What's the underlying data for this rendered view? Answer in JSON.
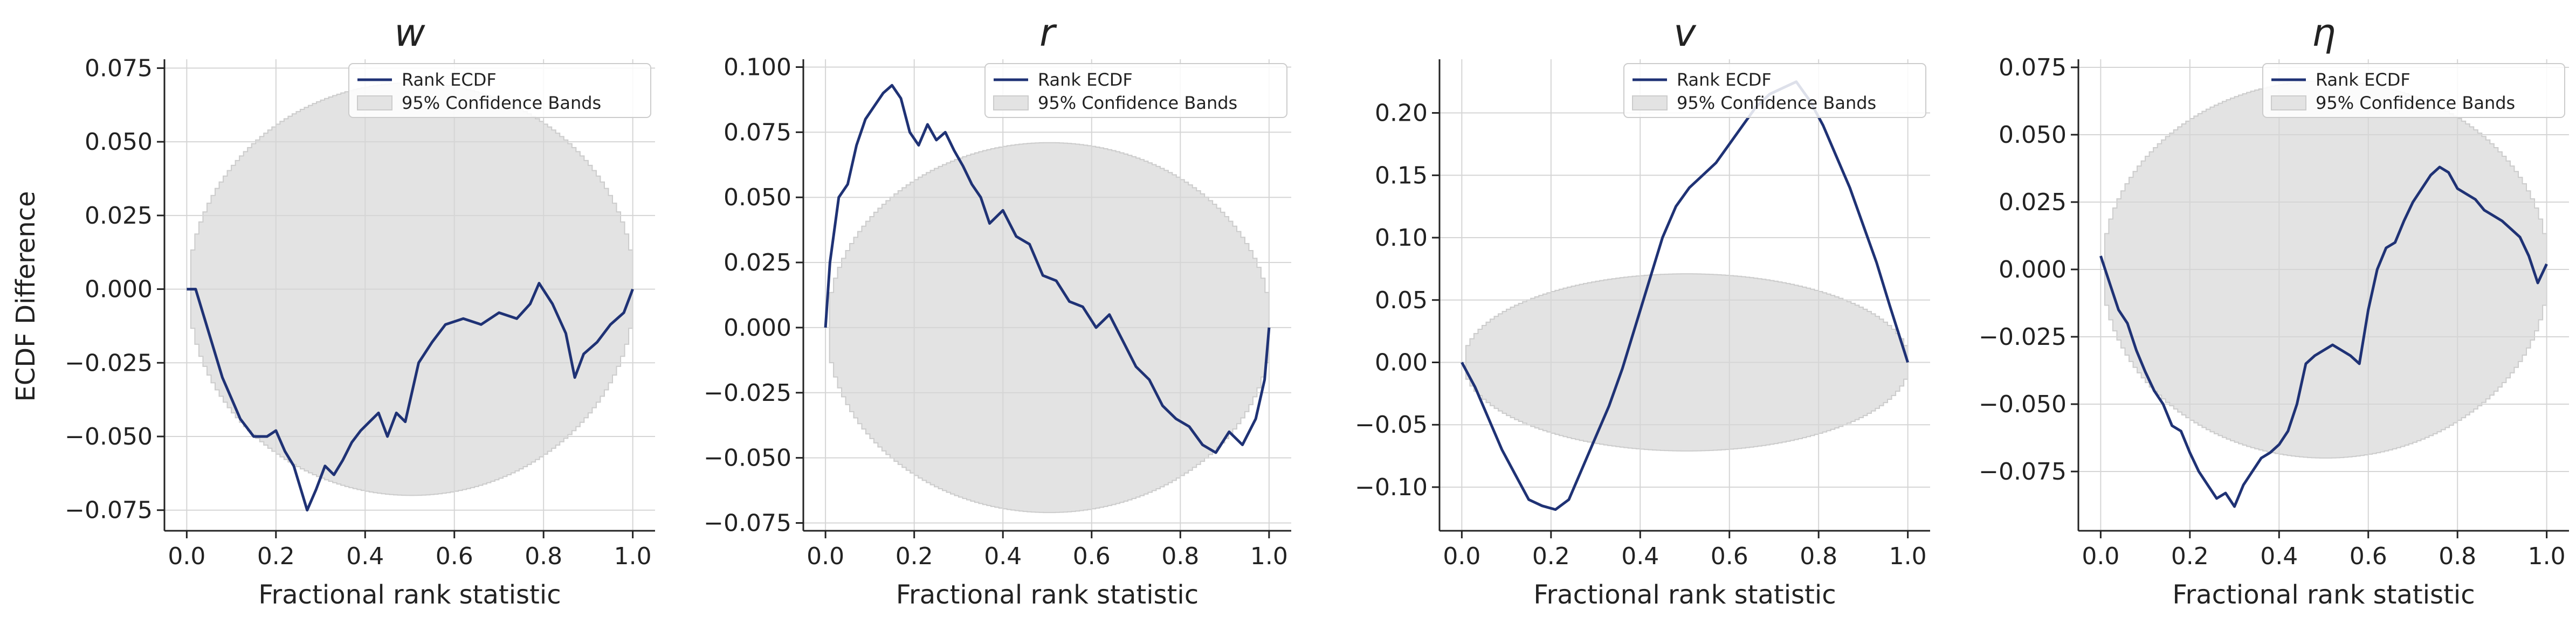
{
  "figure": {
    "ylabel": "ECDF Difference",
    "legend": {
      "line_label": "Rank ECDF",
      "band_label": "95% Confidence Bands",
      "placement": "top-right"
    }
  },
  "colors": {
    "line": "#1f3275",
    "band_fill": "#e3e3e3",
    "band_edge": "#cccccc",
    "grid": "#d5d5d5",
    "axis": "#222222"
  },
  "chart_data": [
    {
      "type": "line",
      "title": "w",
      "xlabel": "Fractional rank statistic",
      "xlim": [
        -0.05,
        1.05
      ],
      "ylim": [
        -0.082,
        0.078
      ],
      "xticks": [
        "0.0",
        "0.2",
        "0.4",
        "0.6",
        "0.8",
        "1.0"
      ],
      "yticks": [
        "−0.075",
        "−0.050",
        "−0.025",
        "0.000",
        "0.025",
        "0.050",
        "0.075"
      ],
      "ytick_values": [
        -0.075,
        -0.05,
        -0.025,
        0,
        0.025,
        0.05,
        0.075
      ],
      "band_halfwidth_max": 0.07,
      "series": [
        {
          "name": "Rank ECDF",
          "x": [
            0,
            0.02,
            0.05,
            0.08,
            0.1,
            0.12,
            0.15,
            0.18,
            0.2,
            0.22,
            0.24,
            0.26,
            0.27,
            0.29,
            0.31,
            0.33,
            0.35,
            0.37,
            0.39,
            0.41,
            0.43,
            0.45,
            0.47,
            0.49,
            0.52,
            0.55,
            0.58,
            0.62,
            0.66,
            0.7,
            0.74,
            0.77,
            0.79,
            0.82,
            0.85,
            0.87,
            0.89,
            0.92,
            0.95,
            0.98,
            1.0
          ],
          "y": [
            0,
            0.0,
            -0.015,
            -0.03,
            -0.037,
            -0.044,
            -0.05,
            -0.05,
            -0.048,
            -0.055,
            -0.06,
            -0.07,
            -0.075,
            -0.068,
            -0.06,
            -0.063,
            -0.058,
            -0.052,
            -0.048,
            -0.045,
            -0.042,
            -0.05,
            -0.042,
            -0.045,
            -0.025,
            -0.018,
            -0.012,
            -0.01,
            -0.012,
            -0.008,
            -0.01,
            -0.005,
            0.002,
            -0.005,
            -0.015,
            -0.03,
            -0.022,
            -0.018,
            -0.012,
            -0.008,
            0
          ]
        }
      ]
    },
    {
      "type": "line",
      "title": "r",
      "xlabel": "Fractional rank statistic",
      "xlim": [
        -0.05,
        1.05
      ],
      "ylim": [
        -0.078,
        0.103
      ],
      "xticks": [
        "0.0",
        "0.2",
        "0.4",
        "0.6",
        "0.8",
        "1.0"
      ],
      "yticks": [
        "−0.075",
        "−0.050",
        "−0.025",
        "0.000",
        "0.025",
        "0.050",
        "0.075",
        "0.100"
      ],
      "ytick_values": [
        -0.075,
        -0.05,
        -0.025,
        0,
        0.025,
        0.05,
        0.075,
        0.1
      ],
      "band_halfwidth_max": 0.071,
      "series": [
        {
          "name": "Rank ECDF",
          "x": [
            0,
            0.01,
            0.03,
            0.05,
            0.07,
            0.09,
            0.11,
            0.13,
            0.15,
            0.17,
            0.19,
            0.21,
            0.23,
            0.25,
            0.27,
            0.29,
            0.31,
            0.33,
            0.35,
            0.37,
            0.4,
            0.43,
            0.46,
            0.49,
            0.52,
            0.55,
            0.58,
            0.61,
            0.64,
            0.67,
            0.7,
            0.73,
            0.76,
            0.79,
            0.82,
            0.85,
            0.88,
            0.91,
            0.94,
            0.97,
            0.99,
            1.0
          ],
          "y": [
            0,
            0.025,
            0.05,
            0.055,
            0.07,
            0.08,
            0.085,
            0.09,
            0.093,
            0.088,
            0.075,
            0.07,
            0.078,
            0.072,
            0.075,
            0.068,
            0.062,
            0.055,
            0.05,
            0.04,
            0.045,
            0.035,
            0.032,
            0.02,
            0.018,
            0.01,
            0.008,
            0.0,
            0.005,
            -0.005,
            -0.015,
            -0.02,
            -0.03,
            -0.035,
            -0.038,
            -0.045,
            -0.048,
            -0.04,
            -0.045,
            -0.035,
            -0.02,
            0
          ]
        }
      ]
    },
    {
      "type": "line",
      "title": "v",
      "xlabel": "Fractional rank statistic",
      "xlim": [
        -0.05,
        1.05
      ],
      "ylim": [
        -0.135,
        0.243
      ],
      "xticks": [
        "0.0",
        "0.2",
        "0.4",
        "0.6",
        "0.8",
        "1.0"
      ],
      "yticks": [
        "−0.10",
        "−0.05",
        "0.00",
        "0.05",
        "0.10",
        "0.15",
        "0.20"
      ],
      "ytick_values": [
        -0.1,
        -0.05,
        0,
        0.05,
        0.1,
        0.15,
        0.2
      ],
      "band_halfwidth_max": 0.071,
      "series": [
        {
          "name": "Rank ECDF",
          "x": [
            0,
            0.03,
            0.06,
            0.09,
            0.12,
            0.15,
            0.18,
            0.21,
            0.24,
            0.27,
            0.3,
            0.33,
            0.36,
            0.39,
            0.42,
            0.45,
            0.48,
            0.51,
            0.54,
            0.57,
            0.6,
            0.63,
            0.66,
            0.69,
            0.72,
            0.75,
            0.78,
            0.81,
            0.84,
            0.87,
            0.9,
            0.93,
            0.96,
            1.0
          ],
          "y": [
            0,
            -0.02,
            -0.045,
            -0.07,
            -0.09,
            -0.11,
            -0.115,
            -0.118,
            -0.11,
            -0.085,
            -0.06,
            -0.035,
            -0.005,
            0.03,
            0.065,
            0.1,
            0.125,
            0.14,
            0.15,
            0.16,
            0.175,
            0.19,
            0.205,
            0.215,
            0.22,
            0.225,
            0.21,
            0.19,
            0.165,
            0.14,
            0.11,
            0.08,
            0.045,
            0
          ]
        }
      ]
    },
    {
      "type": "line",
      "title": "η",
      "xlabel": "Fractional rank statistic",
      "xlim": [
        -0.05,
        1.05
      ],
      "ylim": [
        -0.097,
        0.078
      ],
      "xticks": [
        "0.0",
        "0.2",
        "0.4",
        "0.6",
        "0.8",
        "1.0"
      ],
      "yticks": [
        "−0.075",
        "−0.050",
        "−0.025",
        "0.000",
        "0.025",
        "0.050",
        "0.075"
      ],
      "ytick_values": [
        -0.075,
        -0.05,
        -0.025,
        0,
        0.025,
        0.05,
        0.075
      ],
      "band_halfwidth_max": 0.07,
      "series": [
        {
          "name": "Rank ECDF",
          "x": [
            0,
            0.02,
            0.04,
            0.06,
            0.08,
            0.1,
            0.12,
            0.14,
            0.16,
            0.18,
            0.2,
            0.22,
            0.24,
            0.26,
            0.28,
            0.3,
            0.32,
            0.34,
            0.36,
            0.38,
            0.4,
            0.42,
            0.44,
            0.46,
            0.48,
            0.5,
            0.52,
            0.54,
            0.56,
            0.58,
            0.6,
            0.62,
            0.64,
            0.66,
            0.68,
            0.7,
            0.72,
            0.74,
            0.76,
            0.78,
            0.8,
            0.82,
            0.84,
            0.86,
            0.88,
            0.9,
            0.92,
            0.94,
            0.96,
            0.98,
            1.0
          ],
          "y": [
            0.005,
            -0.005,
            -0.015,
            -0.02,
            -0.03,
            -0.038,
            -0.045,
            -0.05,
            -0.058,
            -0.06,
            -0.068,
            -0.075,
            -0.08,
            -0.085,
            -0.083,
            -0.088,
            -0.08,
            -0.075,
            -0.07,
            -0.068,
            -0.065,
            -0.06,
            -0.05,
            -0.035,
            -0.032,
            -0.03,
            -0.028,
            -0.03,
            -0.032,
            -0.035,
            -0.015,
            0.0,
            0.008,
            0.01,
            0.018,
            0.025,
            0.03,
            0.035,
            0.038,
            0.036,
            0.03,
            0.028,
            0.026,
            0.022,
            0.02,
            0.018,
            0.015,
            0.012,
            0.005,
            -0.005,
            0.002
          ]
        }
      ]
    }
  ]
}
